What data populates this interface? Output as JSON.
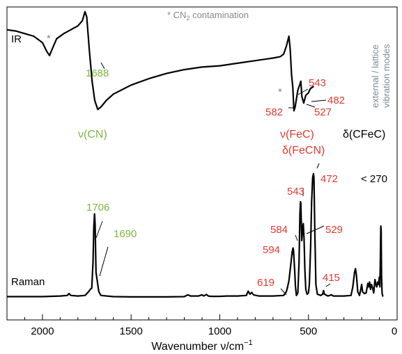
{
  "chart_data": {
    "type": "line",
    "xlabel_prefix": "Wavenumber ",
    "xlabel_symbol": "ν",
    "xlabel_unit": "/cm",
    "xlabel_exp": "−1",
    "xlim": [
      2200,
      0
    ],
    "xticks": [
      2000,
      1500,
      1000,
      500,
      0
    ],
    "colors": {
      "ir_note": "#7f8a93",
      "green": "#7fb542",
      "red": "#e03a31",
      "black": "#000000"
    },
    "note": {
      "prefix": "* CN",
      "sub": "2",
      "suffix": " contamination"
    },
    "side_note": [
      "external / lattice",
      "vibration modes"
    ],
    "series": [
      {
        "name": "IR",
        "points": [
          [
            2200,
            85
          ],
          [
            2150,
            84
          ],
          [
            2100,
            82
          ],
          [
            2050,
            80
          ],
          [
            2000,
            75
          ],
          [
            1975,
            68
          ],
          [
            1960,
            65
          ],
          [
            1945,
            70
          ],
          [
            1920,
            78
          ],
          [
            1880,
            82
          ],
          [
            1840,
            85
          ],
          [
            1800,
            88
          ],
          [
            1775,
            92
          ],
          [
            1760,
            99
          ],
          [
            1750,
            95
          ],
          [
            1735,
            68
          ],
          [
            1720,
            45
          ],
          [
            1705,
            30
          ],
          [
            1688,
            23
          ],
          [
            1670,
            25
          ],
          [
            1640,
            30
          ],
          [
            1600,
            35
          ],
          [
            1500,
            42
          ],
          [
            1400,
            47
          ],
          [
            1300,
            51
          ],
          [
            1200,
            54
          ],
          [
            1100,
            56
          ],
          [
            1000,
            57
          ],
          [
            900,
            59
          ],
          [
            800,
            61
          ],
          [
            700,
            63
          ],
          [
            660,
            64
          ],
          [
            640,
            66
          ],
          [
            625,
            72
          ],
          [
            610,
            80
          ],
          [
            603,
            70
          ],
          [
            595,
            50
          ],
          [
            588,
            40
          ],
          [
            582,
            22
          ],
          [
            575,
            25
          ],
          [
            560,
            38
          ],
          [
            550,
            42
          ],
          [
            543,
            45
          ],
          [
            537,
            33
          ],
          [
            527,
            28
          ],
          [
            515,
            34
          ],
          [
            500,
            36
          ],
          [
            490,
            39
          ],
          [
            482,
            40
          ],
          [
            470,
            41
          ]
        ]
      },
      {
        "name": "Raman",
        "points": [
          [
            2200,
            2
          ],
          [
            2000,
            2
          ],
          [
            1900,
            2.5
          ],
          [
            1860,
            3
          ],
          [
            1850,
            4.5
          ],
          [
            1840,
            3
          ],
          [
            1800,
            2.5
          ],
          [
            1760,
            3
          ],
          [
            1740,
            6
          ],
          [
            1730,
            8
          ],
          [
            1722,
            9
          ],
          [
            1715,
            30
          ],
          [
            1710,
            60
          ],
          [
            1706,
            70
          ],
          [
            1703,
            62
          ],
          [
            1698,
            22
          ],
          [
            1692,
            16
          ],
          [
            1688,
            12
          ],
          [
            1682,
            6
          ],
          [
            1670,
            3
          ],
          [
            1600,
            2
          ],
          [
            1500,
            1.8
          ],
          [
            1300,
            1.8
          ],
          [
            1200,
            2
          ],
          [
            1180,
            3.5
          ],
          [
            1165,
            2.5
          ],
          [
            1120,
            2.5
          ],
          [
            1100,
            3.5
          ],
          [
            1090,
            2.5
          ],
          [
            1075,
            3.8
          ],
          [
            1065,
            2.5
          ],
          [
            1050,
            2.2
          ],
          [
            1000,
            2.2
          ],
          [
            960,
            2.5
          ],
          [
            900,
            2.5
          ],
          [
            850,
            3
          ],
          [
            840,
            6.5
          ],
          [
            830,
            4
          ],
          [
            820,
            5.5
          ],
          [
            810,
            3.5
          ],
          [
            780,
            2.5
          ],
          [
            700,
            2.5
          ],
          [
            640,
            3
          ],
          [
            625,
            6
          ],
          [
            619,
            9
          ],
          [
            610,
            15
          ],
          [
            600,
            28
          ],
          [
            594,
            36
          ],
          [
            590,
            40
          ],
          [
            587,
            42
          ],
          [
            584,
            40
          ],
          [
            578,
            24
          ],
          [
            573,
            10
          ],
          [
            568,
            3
          ],
          [
            560,
            5
          ],
          [
            553,
            30
          ],
          [
            548,
            70
          ],
          [
            545,
            80
          ],
          [
            543,
            79
          ],
          [
            538,
            48
          ],
          [
            534,
            55
          ],
          [
            531,
            60
          ],
          [
            529,
            62
          ],
          [
            525,
            50
          ],
          [
            520,
            24
          ],
          [
            515,
            8
          ],
          [
            508,
            4
          ],
          [
            500,
            5
          ],
          [
            495,
            12
          ],
          [
            488,
            42
          ],
          [
            482,
            80
          ],
          [
            476,
            100
          ],
          [
            472,
            103
          ],
          [
            469,
            100
          ],
          [
            464,
            55
          ],
          [
            458,
            12
          ],
          [
            450,
            4
          ],
          [
            430,
            3
          ],
          [
            420,
            4
          ],
          [
            415,
            7
          ],
          [
            410,
            4
          ],
          [
            390,
            2.5
          ],
          [
            370,
            3.5
          ],
          [
            360,
            2.5
          ],
          [
            300,
            2.5
          ],
          [
            260,
            3
          ],
          [
            250,
            10
          ],
          [
            240,
            22
          ],
          [
            235,
            25
          ],
          [
            230,
            20
          ],
          [
            222,
            6
          ],
          [
            212,
            3
          ],
          [
            205,
            8
          ],
          [
            200,
            12
          ],
          [
            195,
            6
          ],
          [
            185,
            4.5
          ],
          [
            175,
            5
          ],
          [
            165,
            13
          ],
          [
            160,
            10
          ],
          [
            155,
            14
          ],
          [
            150,
            8
          ],
          [
            145,
            12
          ],
          [
            140,
            10
          ],
          [
            132,
            5
          ],
          [
            125,
            16
          ],
          [
            120,
            12
          ],
          [
            115,
            10
          ],
          [
            110,
            14
          ],
          [
            105,
            12
          ],
          [
            100,
            18
          ],
          [
            97,
            10
          ],
          [
            94,
            40
          ],
          [
            92,
            60
          ],
          [
            90,
            56
          ],
          [
            88,
            20
          ],
          [
            85,
            5
          ],
          [
            80,
            2
          ]
        ]
      }
    ],
    "annotations": [
      {
        "id": "ir-1688",
        "text": "1688",
        "color": "green"
      },
      {
        "id": "ir-543",
        "text": "543",
        "color": "red"
      },
      {
        "id": "ir-482",
        "text": "482",
        "color": "red"
      },
      {
        "id": "ir-582",
        "text": "582",
        "color": "red"
      },
      {
        "id": "ir-527",
        "text": "527",
        "color": "red"
      },
      {
        "id": "nu-cn",
        "text": "ν(CN)",
        "color": "green"
      },
      {
        "id": "nu-fec",
        "text": "ν(FeC)",
        "color": "red"
      },
      {
        "id": "delta-fecn",
        "text": "δ(FeCN)",
        "color": "red"
      },
      {
        "id": "delta-cfec",
        "text": "δ(CFeC)",
        "color": "black"
      },
      {
        "id": "r-472",
        "text": "472",
        "color": "red"
      },
      {
        "id": "r-lt270",
        "text": "< 270",
        "color": "black"
      },
      {
        "id": "r-543",
        "text": "543",
        "color": "red"
      },
      {
        "id": "r-1706",
        "text": "1706",
        "color": "green"
      },
      {
        "id": "r-1690",
        "text": "1690",
        "color": "green"
      },
      {
        "id": "r-584",
        "text": "584",
        "color": "red"
      },
      {
        "id": "r-529",
        "text": "529",
        "color": "red"
      },
      {
        "id": "r-594",
        "text": "594",
        "color": "red"
      },
      {
        "id": "r-619",
        "text": "619",
        "color": "red"
      },
      {
        "id": "r-415",
        "text": "415",
        "color": "red"
      }
    ]
  }
}
